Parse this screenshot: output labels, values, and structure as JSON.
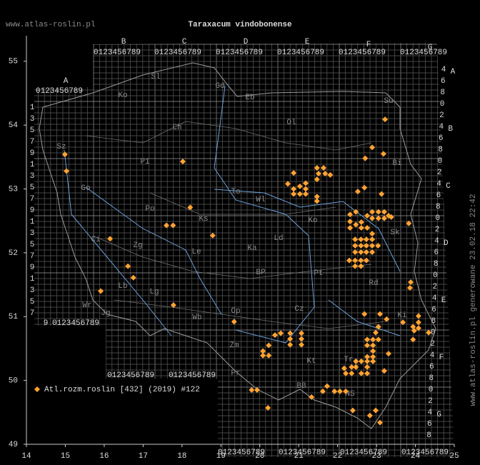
{
  "chart_data": {
    "type": "scatter",
    "title": "Taraxacum vindobonense",
    "source": "www.atlas-roslin.pl",
    "generated": "www.atlas-roslin.pl generowane 23.02.18 22:42",
    "xlim": [
      14,
      25
    ],
    "ylim": [
      49,
      55.4
    ],
    "xticks": [
      14,
      15,
      16,
      17,
      18,
      19,
      20,
      21,
      22,
      23,
      24,
      25
    ],
    "yticks": [
      49,
      50,
      51,
      52,
      53,
      54,
      55
    ],
    "grid_columns": [
      "A",
      "B",
      "C",
      "D",
      "E",
      "F",
      "G"
    ],
    "grid_rows": [
      "A",
      "B",
      "C",
      "D",
      "E",
      "F",
      "G"
    ],
    "grid_digits": "0123456789",
    "grid_left_digits": [
      "1",
      "3",
      "5",
      "7",
      "9"
    ],
    "grid_right_digits": [
      "0",
      "2",
      "4",
      "6",
      "8"
    ],
    "regions": [
      "Ko",
      "Sl",
      "Gd",
      "Eb",
      "Ol",
      "Su",
      "Sz",
      "Ch",
      "Pi",
      "Bi",
      "Go",
      "To",
      "Wl",
      "Po",
      "Ko",
      "Ci",
      "Zg",
      "Le",
      "Ka",
      "Ld",
      "Sk",
      "BP",
      "Pt",
      "Rd",
      "Lb",
      "Lg",
      "Wr",
      "Jg",
      "Wb",
      "Op",
      "Cz",
      "Ki",
      "Zm",
      "Kt",
      "Tr",
      "Pr",
      "BB",
      "NS",
      "Ks"
    ],
    "series": [
      {
        "name": "Atl.rozm.roslin [432] (2019) #122",
        "color": "#ffa232",
        "x": [
          14.99,
          15.03,
          18.02,
          18.21,
          17.6,
          17.77,
          18.79,
          16.15,
          16.61,
          16.75,
          15.91,
          17.78,
          23.22,
          22.89,
          23.18,
          22.71,
          20.87,
          21.47,
          21.64,
          21.51,
          21.68,
          21.47,
          21.81,
          20.72,
          20.87,
          21.03,
          21.18,
          20.87,
          21.03,
          21.18,
          21.18,
          21.47,
          21.47,
          22.52,
          22.69,
          23.13,
          22.32,
          22.47,
          22.32,
          22.32,
          22.47,
          22.61,
          22.61,
          22.76,
          22.89,
          23.05,
          23.2,
          23.31,
          23.05,
          23.2,
          23.38,
          22.89,
          22.76,
          22.89,
          22.89,
          22.74,
          22.6,
          22.74,
          22.89,
          23.04,
          22.6,
          22.45,
          22.45,
          22.6,
          22.74,
          22.89,
          22.3,
          22.45,
          22.6,
          22.74,
          22.45,
          22.6,
          22.45,
          23.83,
          23.88,
          23.86,
          19.34,
          20.39,
          20.54,
          20.78,
          20.78,
          20.78,
          21.07,
          21.07,
          21.07,
          20.23,
          20.08,
          20.08,
          20.23,
          22.69,
          23.09,
          23.26,
          23.05,
          22.98,
          22.76,
          22.91,
          23.05,
          22.76,
          22.91,
          22.91,
          22.76,
          22.91,
          22.47,
          22.61,
          22.76,
          22.91,
          22.17,
          22.36,
          22.47,
          22.76,
          22.21,
          22.36,
          22.61,
          22.76,
          23.2,
          23.31,
          23.68,
          23.94,
          24.08,
          24.08,
          24.08,
          23.97,
          24.34,
          23.94,
          19.79,
          19.93,
          20.21,
          21.33,
          21.62,
          21.73,
          21.92,
          22.06,
          22.21,
          22.39,
          22.83,
          23.09,
          22.98
        ],
        "y": [
          53.54,
          53.28,
          53.43,
          52.71,
          52.43,
          52.43,
          52.27,
          52.22,
          51.79,
          51.61,
          51.4,
          51.18,
          54.09,
          53.65,
          53.55,
          53.48,
          53.25,
          53.33,
          53.33,
          53.24,
          53.24,
          53.15,
          53.22,
          53.08,
          53.0,
          53.04,
          53.09,
          52.92,
          52.92,
          52.92,
          53.0,
          52.88,
          52.81,
          52.96,
          53.02,
          52.92,
          52.6,
          52.64,
          52.49,
          52.39,
          52.44,
          52.48,
          52.39,
          52.58,
          52.64,
          52.64,
          52.64,
          52.58,
          52.54,
          52.54,
          52.56,
          52.54,
          52.39,
          52.3,
          52.21,
          52.21,
          52.21,
          52.11,
          52.11,
          52.11,
          52.11,
          52.11,
          52.01,
          52.01,
          52.01,
          52.01,
          51.88,
          51.88,
          51.88,
          51.88,
          51.79,
          51.79,
          52.21,
          52.46,
          51.54,
          51.45,
          50.92,
          50.71,
          50.74,
          50.74,
          50.65,
          50.56,
          50.74,
          50.65,
          50.56,
          50.55,
          50.46,
          50.39,
          50.39,
          51.04,
          51.04,
          50.96,
          50.84,
          50.75,
          50.64,
          50.64,
          50.64,
          50.55,
          50.55,
          50.46,
          50.37,
          50.37,
          50.3,
          50.3,
          50.3,
          50.3,
          50.19,
          50.21,
          50.21,
          50.21,
          50.11,
          50.11,
          50.11,
          50.11,
          50.15,
          50.42,
          50.91,
          50.84,
          51.01,
          50.91,
          50.82,
          50.78,
          50.75,
          50.64,
          49.85,
          49.85,
          49.57,
          49.74,
          49.83,
          49.91,
          49.83,
          49.83,
          49.83,
          49.53,
          49.45,
          49.34,
          49.53
        ]
      }
    ]
  }
}
